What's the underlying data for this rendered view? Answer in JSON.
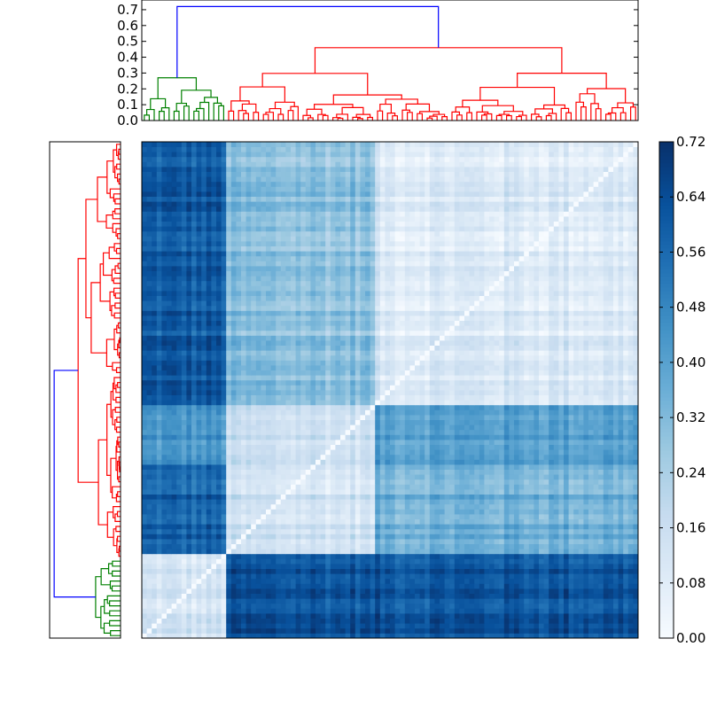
{
  "chart_data": [
    {
      "type": "dendrogram",
      "orientation": "top",
      "yticks": [
        {
          "value": 0.0,
          "label": "0.0"
        },
        {
          "value": 0.1,
          "label": "0.1"
        },
        {
          "value": 0.2,
          "label": "0.2"
        },
        {
          "value": 0.3,
          "label": "0.3"
        },
        {
          "value": 0.4,
          "label": "0.4"
        },
        {
          "value": 0.5,
          "label": "0.5"
        },
        {
          "value": 0.6,
          "label": "0.6"
        },
        {
          "value": 0.7,
          "label": "0.7"
        }
      ],
      "ylim": [
        0,
        0.75
      ],
      "n_leaves": 100,
      "link_colors": {
        "root": "#0000ff",
        "cluster_a": "#008000",
        "cluster_b": "#ff0000"
      },
      "clusters": [
        {
          "name": "cluster_a",
          "color": "#008000",
          "leaf_range": [
            0,
            17
          ],
          "height": 0.27
        },
        {
          "name": "cluster_b",
          "color": "#ff0000",
          "leaf_range": [
            17,
            100
          ],
          "height": 0.46
        }
      ],
      "root_height": 0.72
    },
    {
      "type": "dendrogram",
      "orientation": "left",
      "n_leaves": 100,
      "link_colors": {
        "root": "#0000ff",
        "cluster_a": "#008000",
        "cluster_b": "#ff0000"
      },
      "clusters": [
        {
          "name": "cluster_a",
          "color": "#008000",
          "leaf_range": [
            0,
            16
          ]
        },
        {
          "name": "cluster_b",
          "color": "#ff0000",
          "leaf_range": [
            16,
            100
          ]
        }
      ]
    },
    {
      "type": "heatmap",
      "n_rows": 100,
      "n_cols": 100,
      "colormap": [
        "#f7fbff",
        "#deebf7",
        "#c6dbef",
        "#9ecae1",
        "#6baed6",
        "#4292c6",
        "#2171b5",
        "#08519c",
        "#08306b"
      ],
      "value_range": [
        0.0,
        0.72
      ],
      "blocks": [
        {
          "rows": [
            0,
            17
          ],
          "cols": [
            0,
            17
          ],
          "value": 0.12
        },
        {
          "rows": [
            0,
            17
          ],
          "cols": [
            17,
            47
          ],
          "value": 0.62
        },
        {
          "rows": [
            0,
            17
          ],
          "cols": [
            47,
            100
          ],
          "value": 0.62
        },
        {
          "rows": [
            17,
            35
          ],
          "cols": [
            0,
            17
          ],
          "value": 0.58
        },
        {
          "rows": [
            17,
            35
          ],
          "cols": [
            17,
            47
          ],
          "value": 0.14
        },
        {
          "rows": [
            17,
            35
          ],
          "cols": [
            47,
            100
          ],
          "value": 0.36
        },
        {
          "rows": [
            35,
            47
          ],
          "cols": [
            0,
            17
          ],
          "value": 0.42
        },
        {
          "rows": [
            35,
            47
          ],
          "cols": [
            17,
            47
          ],
          "value": 0.14
        },
        {
          "rows": [
            35,
            47
          ],
          "cols": [
            47,
            100
          ],
          "value": 0.4
        },
        {
          "rows": [
            47,
            100
          ],
          "cols": [
            0,
            17
          ],
          "value": 0.6
        },
        {
          "rows": [
            47,
            100
          ],
          "cols": [
            17,
            47
          ],
          "value": 0.3
        },
        {
          "rows": [
            47,
            100
          ],
          "cols": [
            47,
            100
          ],
          "value": 0.1
        }
      ],
      "diagonal_value": 0.0
    },
    {
      "type": "colorbar",
      "ticks": [
        "0.00",
        "0.08",
        "0.16",
        "0.24",
        "0.32",
        "0.40",
        "0.48",
        "0.56",
        "0.64",
        "0.72"
      ],
      "range": [
        0.0,
        0.72
      ]
    }
  ]
}
